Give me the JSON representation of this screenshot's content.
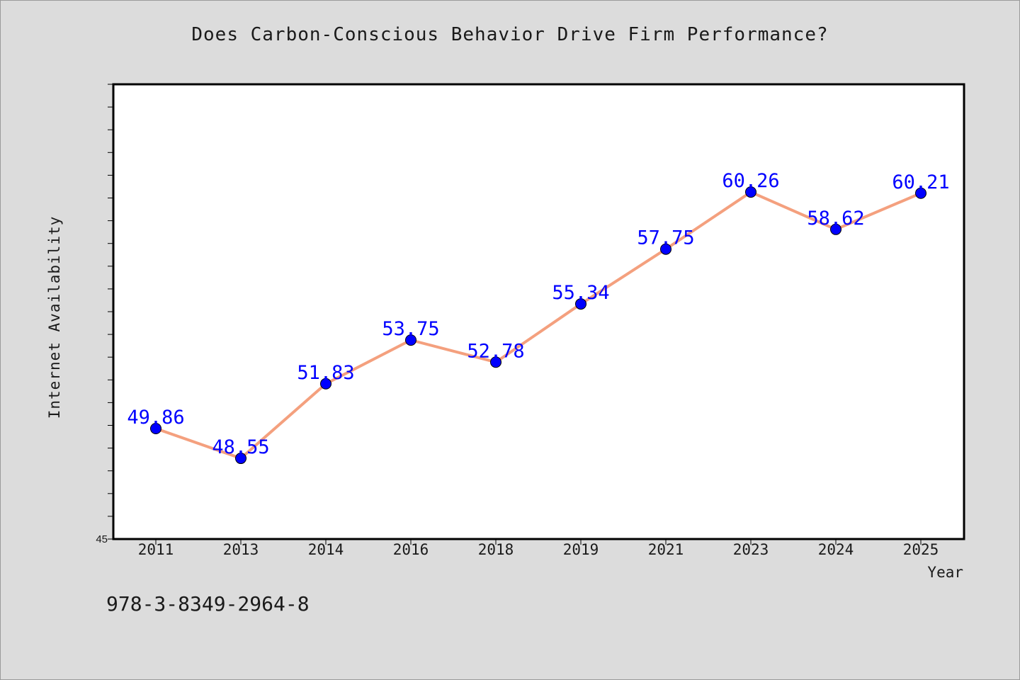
{
  "chart_data": {
    "type": "line",
    "title": "Does Carbon-Conscious Behavior Drive Firm Performance?",
    "xlabel": "Year",
    "ylabel": "Internet Availability",
    "categories": [
      "2011",
      "2013",
      "2014",
      "2016",
      "2018",
      "2019",
      "2021",
      "2023",
      "2024",
      "2025"
    ],
    "series": [
      {
        "values": [
          49.86,
          48.55,
          51.83,
          53.75,
          52.78,
          55.34,
          57.75,
          60.26,
          58.62,
          60.21
        ]
      }
    ],
    "data_labels": [
      "49.86",
      "48.55",
      "51.83",
      "53.75",
      "52.78",
      "55.34",
      "57.75",
      "60.26",
      "58.62",
      "60.21"
    ],
    "ylim": [
      45,
      65
    ],
    "ytick_labels": [
      "45"
    ],
    "grid": false,
    "colors": {
      "line": "#f4a07e",
      "marker": "#0000ff",
      "label": "#0000ff"
    }
  },
  "footer": {
    "isbn": "978-3-8349-2964-8"
  }
}
